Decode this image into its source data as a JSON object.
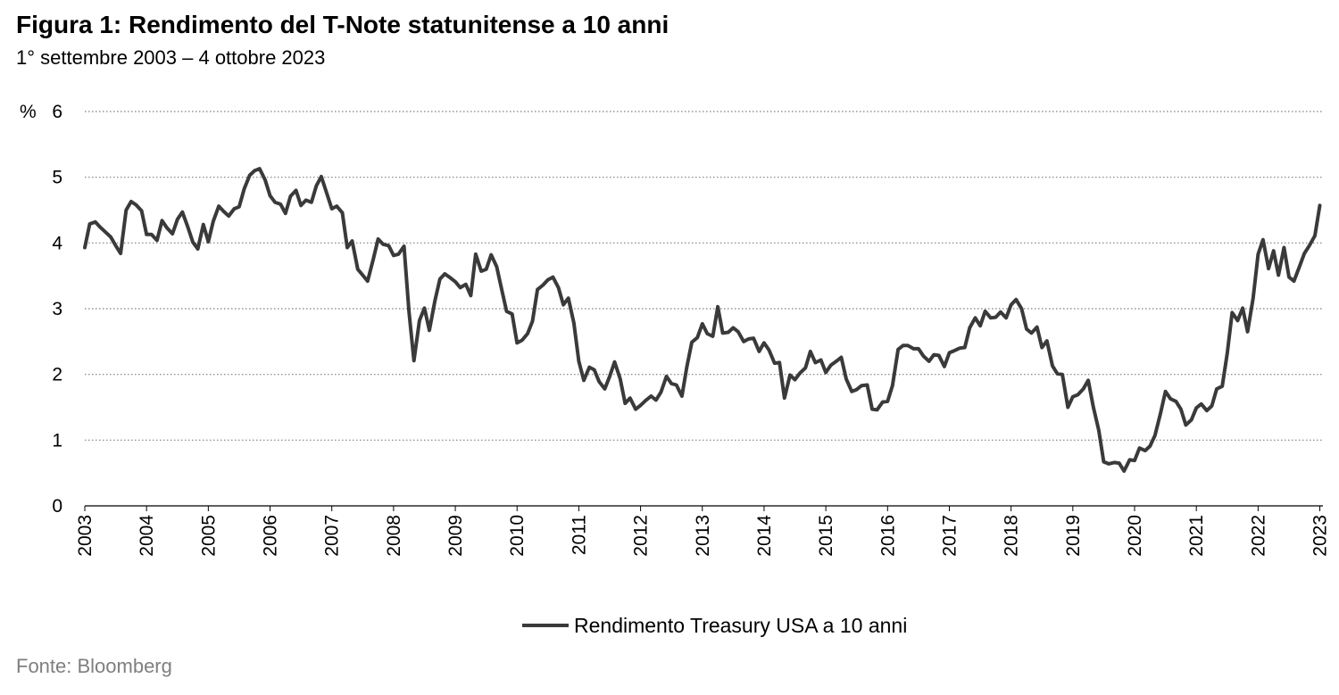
{
  "header": {
    "title": "Figura 1: Rendimento del T-Note statunitense a 10 anni",
    "subtitle": "1° settembre 2003 – 4 ottobre 2023"
  },
  "footer": {
    "source": "Fonte: Bloomberg"
  },
  "chart_data": {
    "type": "line",
    "title": "Figura 1: Rendimento del T-Note statunitense a 10 anni",
    "subtitle": "1° settembre 2003 – 4 ottobre 2023",
    "ylabel": "%",
    "xlabel": "",
    "ylim": [
      0,
      6
    ],
    "yticks": [
      0,
      1,
      2,
      3,
      4,
      5,
      6
    ],
    "xlim": [
      2003.0,
      2023.05
    ],
    "xticks": [
      "2003",
      "2004",
      "2005",
      "2006",
      "2007",
      "2008",
      "2009",
      "2010",
      "2011",
      "2012",
      "2013",
      "2014",
      "2015",
      "2016",
      "2017",
      "2018",
      "2019",
      "2020",
      "2021",
      "2022",
      "2023"
    ],
    "grid": "horizontal dotted",
    "legend": "bottom-center",
    "line_color": "#3a3a3a",
    "grid_color": "#7f7f7f",
    "series": [
      {
        "name": "Rendimento Treasury USA a 10 anni",
        "x": [
          2003.0,
          2003.08,
          2003.17,
          2003.25,
          2003.33,
          2003.42,
          2003.5,
          2003.58,
          2003.67,
          2003.75,
          2003.83,
          2003.92,
          2004.0,
          2004.08,
          2004.17,
          2004.25,
          2004.33,
          2004.42,
          2004.5,
          2004.58,
          2004.67,
          2004.75,
          2004.83,
          2004.92,
          2005.0,
          2005.08,
          2005.17,
          2005.25,
          2005.33,
          2005.42,
          2005.5,
          2005.58,
          2005.67,
          2005.75,
          2005.83,
          2005.92,
          2006.0,
          2006.08,
          2006.17,
          2006.25,
          2006.33,
          2006.42,
          2006.5,
          2006.58,
          2006.67,
          2006.75,
          2006.83,
          2006.92,
          2007.0,
          2007.08,
          2007.17,
          2007.25,
          2007.33,
          2007.42,
          2007.5,
          2007.58,
          2007.67,
          2007.75,
          2007.83,
          2007.92,
          2008.0,
          2008.08,
          2008.17,
          2008.25,
          2008.33,
          2008.42,
          2008.5,
          2008.58,
          2008.67,
          2008.75,
          2008.83,
          2008.92,
          2009.0,
          2009.08,
          2009.17,
          2009.25,
          2009.33,
          2009.42,
          2009.5,
          2009.58,
          2009.67,
          2009.75,
          2009.83,
          2009.92,
          2010.0,
          2010.08,
          2010.17,
          2010.25,
          2010.33,
          2010.42,
          2010.5,
          2010.58,
          2010.67,
          2010.75,
          2010.83,
          2010.92,
          2011.0,
          2011.08,
          2011.17,
          2011.25,
          2011.33,
          2011.42,
          2011.5,
          2011.58,
          2011.67,
          2011.75,
          2011.83,
          2011.92,
          2012.0,
          2012.08,
          2012.17,
          2012.25,
          2012.33,
          2012.42,
          2012.5,
          2012.58,
          2012.67,
          2012.75,
          2012.83,
          2012.92,
          2013.0,
          2013.08,
          2013.17,
          2013.25,
          2013.33,
          2013.42,
          2013.5,
          2013.58,
          2013.67,
          2013.75,
          2013.83,
          2013.92,
          2014.0,
          2014.08,
          2014.17,
          2014.25,
          2014.33,
          2014.42,
          2014.5,
          2014.58,
          2014.67,
          2014.75,
          2014.83,
          2014.92,
          2015.0,
          2015.08,
          2015.17,
          2015.25,
          2015.33,
          2015.42,
          2015.5,
          2015.58,
          2015.67,
          2015.75,
          2015.83,
          2015.92,
          2016.0,
          2016.08,
          2016.17,
          2016.25,
          2016.33,
          2016.42,
          2016.5,
          2016.58,
          2016.67,
          2016.75,
          2016.83,
          2016.92,
          2017.0,
          2017.08,
          2017.17,
          2017.25,
          2017.33,
          2017.42,
          2017.5,
          2017.58,
          2017.67,
          2017.75,
          2017.83,
          2017.92,
          2018.0,
          2018.08,
          2018.17,
          2018.25,
          2018.33,
          2018.42,
          2018.5,
          2018.58,
          2018.67,
          2018.75,
          2018.83,
          2018.92,
          2019.0,
          2019.08,
          2019.17,
          2019.25,
          2019.33,
          2019.42,
          2019.5,
          2019.58,
          2019.67,
          2019.75,
          2019.83,
          2019.92,
          2020.0,
          2020.08,
          2020.17,
          2020.25,
          2020.33,
          2020.42,
          2020.5,
          2020.58,
          2020.67,
          2020.75,
          2020.83,
          2020.92,
          2021.0,
          2021.08,
          2021.17,
          2021.25,
          2021.33,
          2021.42,
          2021.5,
          2021.58,
          2021.67,
          2021.75,
          2021.83,
          2021.92,
          2022.0,
          2022.08,
          2022.17,
          2022.25,
          2022.33,
          2022.42,
          2022.5,
          2022.58,
          2022.67,
          2022.75,
          2022.83,
          2022.92,
          2023.0
        ],
        "values": [
          3.93,
          4.29,
          4.32,
          4.24,
          4.17,
          4.09,
          3.96,
          3.84,
          4.5,
          4.63,
          4.58,
          4.49,
          4.13,
          4.13,
          4.04,
          4.34,
          4.23,
          4.14,
          4.36,
          4.47,
          4.24,
          4.01,
          3.91,
          4.28,
          4.02,
          4.33,
          4.56,
          4.48,
          4.41,
          4.52,
          4.55,
          4.82,
          5.03,
          5.1,
          5.13,
          4.96,
          4.72,
          4.62,
          4.59,
          4.45,
          4.71,
          4.8,
          4.57,
          4.65,
          4.62,
          4.87,
          5.01,
          4.75,
          4.52,
          4.56,
          4.46,
          3.93,
          4.03,
          3.6,
          3.51,
          3.42,
          3.75,
          4.06,
          3.98,
          3.96,
          3.81,
          3.83,
          3.95,
          2.95,
          2.21,
          2.82,
          3.01,
          2.67,
          3.12,
          3.45,
          3.53,
          3.47,
          3.41,
          3.32,
          3.37,
          3.2,
          3.83,
          3.57,
          3.6,
          3.82,
          3.64,
          3.3,
          2.96,
          2.92,
          2.48,
          2.52,
          2.62,
          2.81,
          3.29,
          3.36,
          3.44,
          3.48,
          3.32,
          3.06,
          3.16,
          2.78,
          2.2,
          1.91,
          2.11,
          2.07,
          1.89,
          1.78,
          1.97,
          2.19,
          1.93,
          1.56,
          1.64,
          1.47,
          1.53,
          1.6,
          1.67,
          1.61,
          1.73,
          1.97,
          1.86,
          1.84,
          1.67,
          2.12,
          2.49,
          2.56,
          2.77,
          2.62,
          2.58,
          3.03,
          2.63,
          2.64,
          2.71,
          2.65,
          2.5,
          2.54,
          2.55,
          2.35,
          2.48,
          2.37,
          2.17,
          2.18,
          1.64,
          1.99,
          1.92,
          2.02,
          2.1,
          2.35,
          2.18,
          2.22,
          2.03,
          2.14,
          2.2,
          2.26,
          1.93,
          1.74,
          1.77,
          1.83,
          1.84,
          1.47,
          1.46,
          1.58,
          1.59,
          1.83,
          2.38,
          2.44,
          2.44,
          2.39,
          2.39,
          2.28,
          2.2,
          2.3,
          2.29,
          2.12,
          2.33,
          2.36,
          2.4,
          2.41,
          2.71,
          2.86,
          2.74,
          2.96,
          2.86,
          2.87,
          2.95,
          2.86,
          3.06,
          3.14,
          3.0,
          2.69,
          2.63,
          2.72,
          2.41,
          2.51,
          2.13,
          2.01,
          2.0,
          1.5,
          1.66,
          1.69,
          1.78,
          1.91,
          1.51,
          1.15,
          0.67,
          0.64,
          0.66,
          0.65,
          0.53,
          0.7,
          0.69,
          0.88,
          0.84,
          0.91,
          1.07,
          1.41,
          1.74,
          1.63,
          1.59,
          1.47,
          1.23,
          1.31,
          1.49,
          1.55,
          1.45,
          1.52,
          1.78,
          1.82,
          2.32,
          2.94,
          2.82,
          3.01,
          2.65,
          3.16,
          3.83,
          4.05,
          3.61,
          3.88,
          3.51,
          3.93,
          3.48,
          3.42,
          3.64,
          3.84,
          3.96,
          4.11,
          4.57
        ]
      }
    ]
  }
}
